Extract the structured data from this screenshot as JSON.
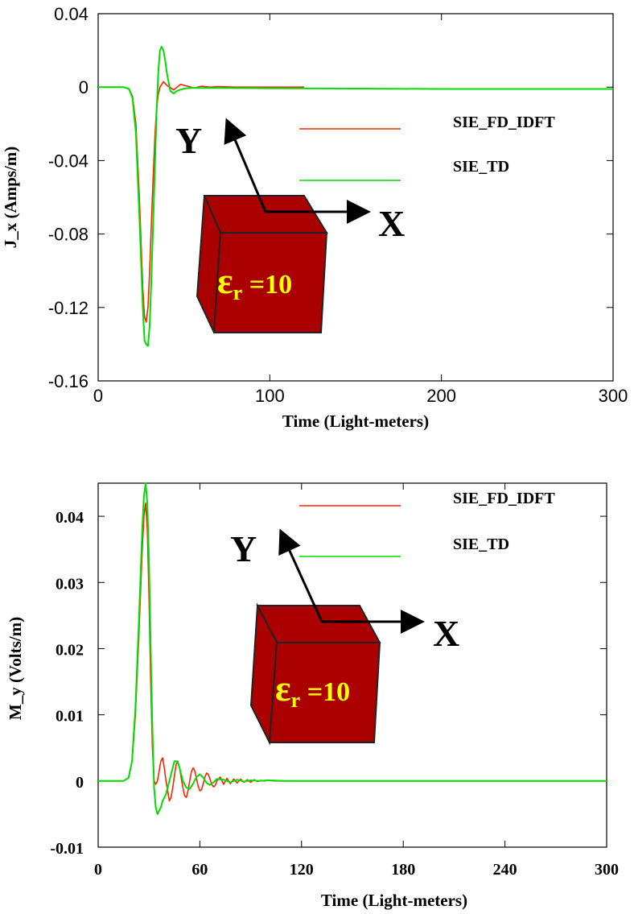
{
  "chart_data": [
    {
      "type": "line",
      "title": "",
      "xlabel": "Time (Light-meters)",
      "ylabel": "J_x (Amps/m)",
      "xlim": [
        0,
        300
      ],
      "ylim": [
        -0.16,
        0.04
      ],
      "xticks": [
        0,
        100,
        200,
        300
      ],
      "xtick_labels": [
        "0",
        "100",
        "200",
        "300"
      ],
      "yticks": [
        0.04,
        0,
        -0.04,
        -0.08,
        -0.12,
        -0.16
      ],
      "ytick_labels": [
        "0.04",
        "0",
        "-0.04",
        "-0.08",
        "-0.12",
        "-0.16"
      ],
      "grid": false,
      "legend_position": "top-right",
      "series": [
        {
          "name": "SIE_FD_IDFT",
          "color": "#ff2200",
          "x": [
            0,
            10,
            15,
            18,
            20,
            22,
            24,
            26,
            27,
            28,
            29,
            30,
            31,
            32,
            33,
            34,
            35,
            36,
            38,
            40,
            44,
            48,
            52,
            56,
            60,
            65,
            70,
            80,
            90,
            100,
            110,
            120
          ],
          "y": [
            0,
            0,
            0,
            -0.001,
            -0.005,
            -0.02,
            -0.06,
            -0.11,
            -0.125,
            -0.128,
            -0.12,
            -0.1,
            -0.075,
            -0.05,
            -0.028,
            -0.012,
            -0.004,
            0.0,
            0.003,
            0.001,
            -0.0015,
            0.0015,
            0.0005,
            -0.0005,
            0.0005,
            0,
            0.0003,
            0,
            0,
            0,
            0,
            0
          ]
        },
        {
          "name": "SIE_TD",
          "color": "#00dd00",
          "x": [
            0,
            10,
            15,
            18,
            20,
            22,
            24,
            26,
            27,
            28,
            29,
            30,
            31,
            32,
            33,
            34,
            35,
            36,
            37,
            38,
            39,
            40,
            42,
            44,
            46,
            50,
            55,
            60,
            70,
            100,
            150,
            200,
            250,
            300
          ],
          "y": [
            0,
            0,
            0,
            -0.001,
            -0.006,
            -0.025,
            -0.07,
            -0.12,
            -0.138,
            -0.14,
            -0.141,
            -0.13,
            -0.105,
            -0.075,
            -0.045,
            -0.015,
            0.008,
            0.02,
            0.022,
            0.02,
            0.015,
            0.008,
            -0.002,
            -0.0035,
            -0.002,
            -0.0008,
            -0.0004,
            -0.0005,
            -0.0005,
            -0.0006,
            -0.0008,
            -0.001,
            -0.001,
            -0.001
          ]
        }
      ]
    },
    {
      "type": "line",
      "title": "",
      "xlabel": "Time (Light-meters)",
      "ylabel": "M_y (Volts/m)",
      "xlim": [
        0,
        300
      ],
      "ylim": [
        -0.01,
        0.045
      ],
      "xticks": [
        0,
        60,
        120,
        180,
        240,
        300
      ],
      "xtick_labels": [
        "0",
        "60",
        "120",
        "180",
        "240",
        "300"
      ],
      "yticks": [
        0.04,
        0.03,
        0.02,
        0.01,
        0,
        -0.01
      ],
      "ytick_labels": [
        "0.04",
        "0.03",
        "0.02",
        "0.01",
        "0",
        "-0.01"
      ],
      "grid": false,
      "legend_position": "top-right",
      "series": [
        {
          "name": "SIE_FD_IDFT",
          "color": "#ff2200",
          "x": [
            0,
            12,
            15,
            18,
            20,
            22,
            24,
            26,
            27,
            28,
            29,
            30,
            31,
            32,
            33,
            34,
            35,
            36,
            37,
            38,
            39,
            40,
            41,
            42,
            43,
            44,
            45,
            46,
            47,
            48,
            49,
            50,
            51,
            52,
            53,
            54,
            55,
            56,
            57,
            58,
            59,
            60,
            61,
            62,
            63,
            64,
            65,
            66,
            67,
            68,
            69,
            70,
            72,
            74,
            76,
            78,
            80,
            82,
            84,
            86,
            88,
            90,
            92,
            94,
            96,
            98,
            100,
            104,
            108,
            112,
            116,
            120,
            300
          ],
          "y": [
            0,
            0,
            0,
            0.0005,
            0.003,
            0.01,
            0.022,
            0.035,
            0.04,
            0.042,
            0.038,
            0.028,
            0.015,
            0.005,
            0.0,
            -0.0005,
            0.0,
            0.0015,
            0.003,
            0.0035,
            0.002,
            0.0,
            -0.0015,
            -0.003,
            -0.0025,
            -0.001,
            0.0008,
            0.0025,
            0.003,
            0.002,
            0.0005,
            -0.001,
            -0.0022,
            -0.0025,
            -0.0015,
            0.0,
            0.0014,
            0.002,
            0.0015,
            0.0004,
            -0.0008,
            -0.0015,
            -0.0013,
            -0.0004,
            0.0006,
            0.0012,
            0.001,
            0.0003,
            -0.0005,
            -0.0009,
            -0.0007,
            0.0,
            0.0006,
            -0.0005,
            0.0004,
            -0.0004,
            0.0003,
            -0.0003,
            0.0003,
            -0.0002,
            0.0002,
            -0.0002,
            0.0002,
            -0.0001,
            0.0001,
            0.0,
            0.0001,
            0.0,
            0.0,
            0.0,
            0.0,
            0.0,
            0.0
          ]
        },
        {
          "name": "SIE_TD",
          "color": "#00dd00",
          "x": [
            0,
            12,
            15,
            18,
            20,
            22,
            24,
            26,
            27,
            28,
            29,
            30,
            31,
            32,
            33,
            34,
            35,
            36,
            37,
            38,
            40,
            42,
            44,
            45,
            46,
            47,
            48,
            49,
            50,
            52,
            54,
            56,
            58,
            60,
            62,
            64,
            66,
            68,
            70,
            74,
            78,
            82,
            86,
            90,
            95,
            100,
            110,
            120,
            300
          ],
          "y": [
            0,
            0,
            0,
            0.0005,
            0.003,
            0.011,
            0.024,
            0.038,
            0.043,
            0.045,
            0.042,
            0.033,
            0.02,
            0.008,
            -0.001,
            -0.004,
            -0.005,
            -0.0045,
            -0.004,
            -0.003,
            -0.002,
            0.0,
            0.002,
            0.003,
            0.003,
            0.0028,
            0.002,
            0.001,
            0.0,
            -0.001,
            -0.0012,
            -0.0004,
            0.0006,
            0.001,
            0.0005,
            -0.0003,
            -0.0006,
            -0.0002,
            0.0003,
            0.0002,
            -0.0002,
            0.0002,
            -0.0001,
            0.0001,
            0.0,
            0.0001,
            0.0,
            0.0,
            0.0
          ]
        }
      ]
    }
  ],
  "insets": [
    {
      "x_axis_label": "X",
      "y_axis_label": "Y",
      "material_label": "ε",
      "subscript": "r",
      "value": " =10",
      "fill": "#aa0000"
    },
    {
      "x_axis_label": "X",
      "y_axis_label": "Y",
      "material_label": "ε",
      "subscript": "r",
      "value": " =10",
      "fill": "#aa0000"
    }
  ]
}
